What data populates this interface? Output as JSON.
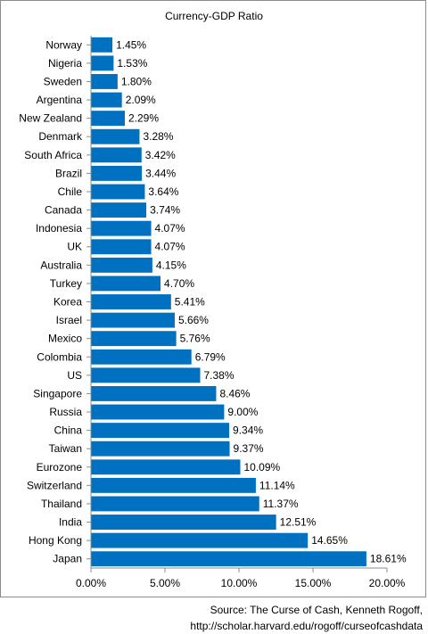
{
  "chart_data": {
    "type": "bar",
    "orientation": "horizontal",
    "title": "Currency-GDP Ratio",
    "xlabel": "",
    "ylabel": "",
    "xlim": [
      0,
      20
    ],
    "x_tick_labels": [
      "0.00%",
      "5.00%",
      "10.00%",
      "15.00%",
      "20.00%"
    ],
    "x_ticks": [
      0,
      5,
      10,
      15,
      20
    ],
    "grid": false,
    "bar_color": "#0070c0",
    "categories": [
      "Norway",
      "Nigeria",
      "Sweden",
      "Argentina",
      "New Zealand",
      "Denmark",
      "South Africa",
      "Brazil",
      "Chile",
      "Canada",
      "Indonesia",
      "UK",
      "Australia",
      "Turkey",
      "Korea",
      "Israel",
      "Mexico",
      "Colombia",
      "US",
      "Singapore",
      "Russia",
      "China",
      "Taiwan",
      "Eurozone",
      "Switzerland",
      "Thailand",
      "India",
      "Hong Kong",
      "Japan"
    ],
    "values": [
      1.45,
      1.53,
      1.8,
      2.09,
      2.29,
      3.28,
      3.42,
      3.44,
      3.64,
      3.74,
      4.07,
      4.07,
      4.15,
      4.7,
      5.41,
      5.66,
      5.76,
      6.79,
      7.38,
      8.46,
      9.0,
      9.34,
      9.37,
      10.09,
      11.14,
      11.37,
      12.51,
      14.65,
      18.61
    ],
    "value_labels": [
      "1.45%",
      "1.53%",
      "1.80%",
      "2.09%",
      "2.29%",
      "3.28%",
      "3.42%",
      "3.44%",
      "3.64%",
      "3.74%",
      "4.07%",
      "4.07%",
      "4.15%",
      "4.70%",
      "5.41%",
      "5.66%",
      "5.76%",
      "6.79%",
      "7.38%",
      "8.46%",
      "9.00%",
      "9.34%",
      "9.37%",
      "10.09%",
      "11.14%",
      "11.37%",
      "12.51%",
      "14.65%",
      "18.61%"
    ]
  },
  "source": {
    "line1": "Source: The Curse of Cash, Kenneth Rogoff,",
    "line2": "http://scholar.harvard.edu/rogoff/curseofcashdata"
  }
}
